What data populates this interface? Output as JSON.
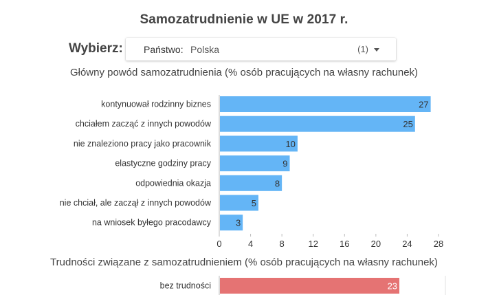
{
  "title": "Samozatrudnienie w UE w 2017 r.",
  "selector": {
    "label": "Wybierz:",
    "field": "Państwo:",
    "value": "Polska",
    "count": "(1)"
  },
  "colors": {
    "primary_bar": "#64b5f6",
    "secondary_bar": "#e57373",
    "axis": "#bbbbbb"
  },
  "chart_data": [
    {
      "type": "bar",
      "orientation": "horizontal",
      "title": "Główny powód samozatrudnienia (% osób pracujących na własny rachunek)",
      "categories": [
        "kontynuował rodzinny biznes",
        "chciałem zacząć z innych powodów",
        "nie znaleziono pracy jako pracownik",
        "elastyczne godziny pracy",
        "odpowiednia okazja",
        "nie chciał, ale zaczął z innych powodów",
        "na wniosek byłego pracodawcy"
      ],
      "values": [
        27,
        25,
        10,
        9,
        8,
        5,
        3
      ],
      "xlim": [
        0,
        28
      ],
      "xticks": [
        "0",
        "4",
        "8",
        "12",
        "16",
        "20",
        "24",
        "28"
      ],
      "grid": false
    },
    {
      "type": "bar",
      "orientation": "horizontal",
      "title": "Trudności związane z samozatrudnieniem (% osób pracujących na własny rachunek)",
      "categories": [
        "bez trudności"
      ],
      "values": [
        23
      ],
      "xlim": [
        0,
        28
      ]
    }
  ]
}
